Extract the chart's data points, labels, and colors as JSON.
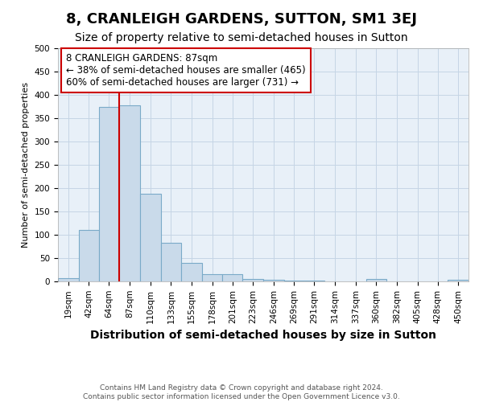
{
  "title": "8, CRANLEIGH GARDENS, SUTTON, SM1 3EJ",
  "subtitle": "Size of property relative to semi-detached houses in Sutton",
  "xlabel": "Distribution of semi-detached houses by size in Sutton",
  "ylabel": "Number of semi-detached properties",
  "footnote1": "Contains HM Land Registry data © Crown copyright and database right 2024.",
  "footnote2": "Contains public sector information licensed under the Open Government Licence v3.0.",
  "annotation_line1": "8 CRANLEIGH GARDENS: 87sqm",
  "annotation_line2": "← 38% of semi-detached houses are smaller (465)",
  "annotation_line3": "60% of semi-detached houses are larger (731) →",
  "bar_edges": [
    19,
    42,
    64,
    87,
    110,
    133,
    155,
    178,
    201,
    223,
    246,
    269,
    291,
    314,
    337,
    360,
    382,
    405,
    428,
    450,
    473
  ],
  "bar_heights": [
    7,
    110,
    375,
    378,
    188,
    82,
    40,
    15,
    16,
    6,
    4,
    2,
    2,
    0,
    0,
    5,
    0,
    0,
    0,
    3
  ],
  "property_size": 87,
  "bar_color": "#c9daea",
  "bar_edge_color": "#7aaac8",
  "redline_color": "#cc0000",
  "annotation_box_edgecolor": "#cc0000",
  "annotation_box_facecolor": "#ffffff",
  "plot_bg_color": "#e8f0f8",
  "fig_bg_color": "#ffffff",
  "grid_color": "#c5d5e5",
  "ylim": [
    0,
    500
  ],
  "yticks": [
    0,
    50,
    100,
    150,
    200,
    250,
    300,
    350,
    400,
    450,
    500
  ],
  "title_fontsize": 13,
  "subtitle_fontsize": 10,
  "xlabel_fontsize": 10,
  "ylabel_fontsize": 8,
  "footnote_fontsize": 6.5,
  "annotation_fontsize": 8.5,
  "tick_fontsize": 7.5
}
